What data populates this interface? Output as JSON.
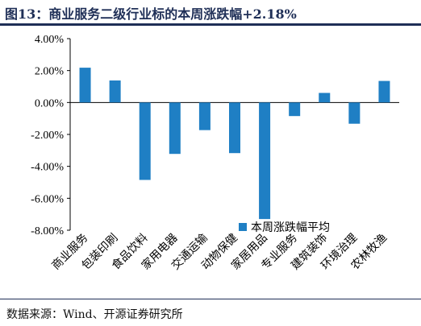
{
  "figure": {
    "title": "图13：商业服务二级行业标的本周涨跌幅+2.18%",
    "source": "数据来源：Wind、开源证券研究所"
  },
  "chart_data": {
    "type": "bar",
    "categories": [
      "商业服务",
      "包装印刷",
      "食品饮料",
      "家用电器",
      "交通运输",
      "动物保健",
      "家居用品",
      "专业服务",
      "建筑装饰",
      "环境治理",
      "农林牧渔"
    ],
    "series": [
      {
        "name": "本周涨跌幅平均",
        "values": [
          2.18,
          1.38,
          -4.85,
          -3.22,
          -1.73,
          -3.17,
          -7.3,
          -0.85,
          0.6,
          -1.33,
          1.35
        ]
      }
    ],
    "ylim": [
      -8,
      4
    ],
    "yticks": [
      4,
      2,
      0,
      -2,
      -4,
      -6,
      -8
    ],
    "ytick_labels": [
      "4.00%",
      "2.00%",
      "0.00%",
      "-2.00%",
      "-4.00%",
      "-6.00%",
      "-8.00%"
    ],
    "unit": "%",
    "legend_position": "bottom-right",
    "grid": false,
    "colors": {
      "bar": "#1f7fc4",
      "axis": "#000000",
      "title": "#1f2f57"
    }
  }
}
